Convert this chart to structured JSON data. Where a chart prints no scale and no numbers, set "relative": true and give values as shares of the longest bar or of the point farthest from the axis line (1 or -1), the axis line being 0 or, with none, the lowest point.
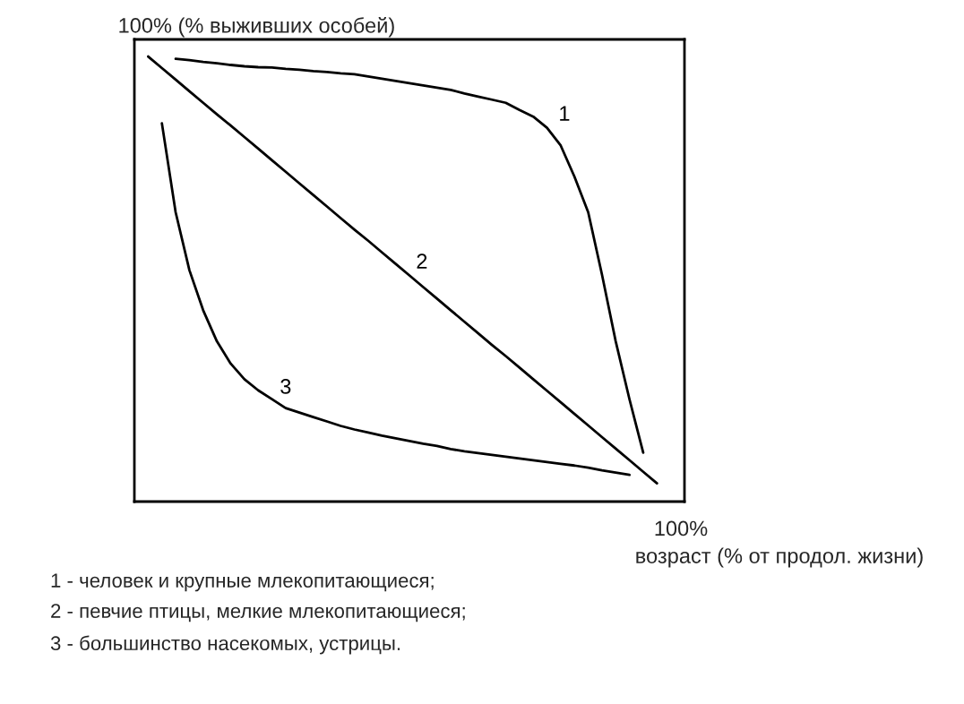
{
  "chart_data": {
    "type": "line",
    "relative": true,
    "ylabel": "100% (% выживших особей)",
    "xlabel": "возраст (% от продол. жизни)",
    "marker": "none",
    "line_style": "solid",
    "categories": [
      null,
      null,
      null,
      null,
      null,
      null,
      null,
      null,
      null,
      null,
      null,
      null,
      null,
      null,
      null,
      null,
      null,
      null,
      null,
      null,
      null,
      null,
      null,
      null,
      null,
      null,
      null,
      null,
      null,
      null,
      null,
      null,
      null,
      null,
      null,
      null,
      null,
      null,
      null,
      null,
      null
    ],
    "series": [
      {
        "name": "1",
        "color": "#000000",
        "values": [
          null,
          null,
          null,
          0.995,
          0.992,
          0.988,
          0.985,
          0.981,
          0.978,
          0.976,
          0.975,
          0.972,
          0.97,
          0.967,
          0.965,
          0.962,
          0.96,
          0.955,
          0.95,
          0.945,
          0.94,
          0.935,
          0.93,
          0.925,
          0.917,
          0.91,
          0.903,
          0.896,
          0.88,
          0.865,
          0.84,
          0.8,
          0.73,
          0.65,
          0.51,
          0.36,
          0.23,
          0.11,
          null,
          null,
          null
        ]
      },
      {
        "name": "2",
        "color": "#000000",
        "values": [
          null,
          1.0,
          0.974,
          0.948,
          0.922,
          0.896,
          0.87,
          0.845,
          0.819,
          0.793,
          0.767,
          0.741,
          0.715,
          0.689,
          0.663,
          0.637,
          0.611,
          0.586,
          0.56,
          0.534,
          0.508,
          0.482,
          0.456,
          0.43,
          0.404,
          0.378,
          0.352,
          0.327,
          0.301,
          0.275,
          0.249,
          0.223,
          0.197,
          0.171,
          0.145,
          0.119,
          0.093,
          0.067,
          0.041,
          null,
          null
        ]
      },
      {
        "name": "3",
        "color": "#000000",
        "values": [
          null,
          null,
          0.85,
          0.65,
          0.52,
          0.43,
          0.36,
          0.31,
          0.275,
          0.25,
          0.23,
          0.21,
          0.2,
          0.19,
          0.18,
          0.17,
          0.162,
          0.155,
          0.148,
          0.142,
          0.136,
          0.13,
          0.125,
          0.118,
          0.113,
          0.109,
          0.105,
          0.101,
          0.097,
          0.093,
          0.089,
          0.085,
          0.081,
          0.076,
          0.07,
          0.065,
          0.06,
          null,
          null,
          null,
          null
        ]
      }
    ],
    "annotations": [
      "100%",
      "1 - человек и крупные млекопитающиеся;",
      "2 - певчие птицы, мелкие млекопитающиеся;",
      "3 - большинство насекомых, устрицы."
    ]
  }
}
